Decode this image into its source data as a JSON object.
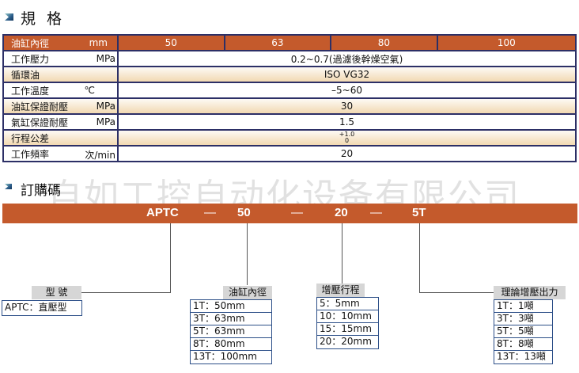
{
  "specs": {
    "title": "規 格",
    "header": {
      "label": "油缸內徑",
      "unit": "mm",
      "values": [
        "50",
        "63",
        "80",
        "100"
      ]
    },
    "rows": [
      {
        "label": "工作壓力",
        "unit": "MPa",
        "value": "0.2~0.7(過濾後幹燥空氣)"
      },
      {
        "label": "循環油",
        "unit": "",
        "value": "ISO VG32"
      },
      {
        "label": "工作溫度",
        "unit": "℃",
        "value": "–5~60"
      },
      {
        "label": "油缸保證耐壓",
        "unit": "MPa",
        "value": "30"
      },
      {
        "label": "氣缸保證耐壓",
        "unit": "MPa",
        "value": "1.5"
      },
      {
        "label": "行程公差",
        "unit": "",
        "value_upper": "+1.0",
        "value_lower": "0"
      },
      {
        "label": "工作頻率",
        "unit": "次/min",
        "value": "20"
      }
    ]
  },
  "order": {
    "title": "訂購碼",
    "code": [
      "APTC",
      "—",
      "50",
      "—",
      "20",
      "—",
      "5T"
    ],
    "model": {
      "caption": "型 號",
      "items": [
        "APTC：直壓型"
      ]
    },
    "bore": {
      "caption": "油缸內徑",
      "items": [
        "1T：50mm",
        "3T：63mm",
        "5T：63mm",
        "8T：80mm",
        "13T：100mm"
      ]
    },
    "stroke": {
      "caption": "增壓行程",
      "items": [
        "5：5mm",
        "10：10mm",
        "15：15mm",
        "20：20mm"
      ]
    },
    "force": {
      "caption": "理論增壓出力",
      "items": [
        "1T：1噸",
        "3T：3噸",
        "5T：5噸",
        "8T：8噸",
        "13T：13噸"
      ]
    }
  },
  "watermark": "自如工控自动化设备有限公司",
  "colors": {
    "accent": "#c45a2c",
    "border": "#2c2f66"
  }
}
